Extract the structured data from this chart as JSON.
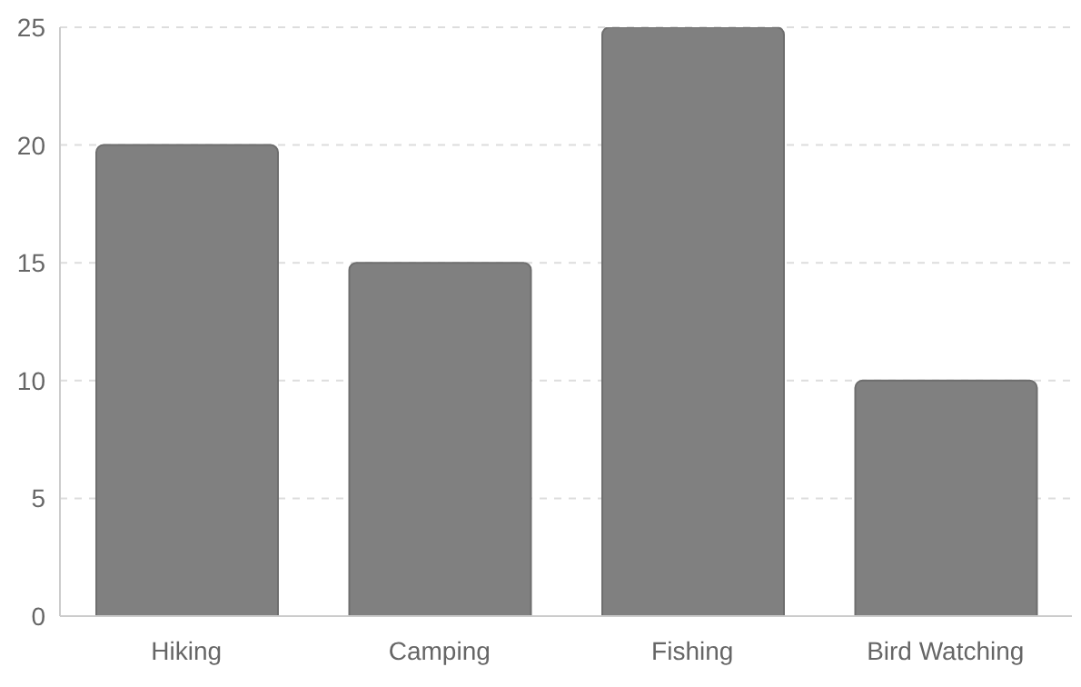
{
  "chart_data": {
    "type": "bar",
    "categories": [
      "Hiking",
      "Camping",
      "Fishing",
      "Bird Watching"
    ],
    "values": [
      20,
      15,
      25,
      10
    ],
    "color": "#808080",
    "ylim": [
      0,
      25
    ],
    "yticks": [
      0,
      5,
      10,
      15,
      20,
      25
    ],
    "grid": "y"
  }
}
